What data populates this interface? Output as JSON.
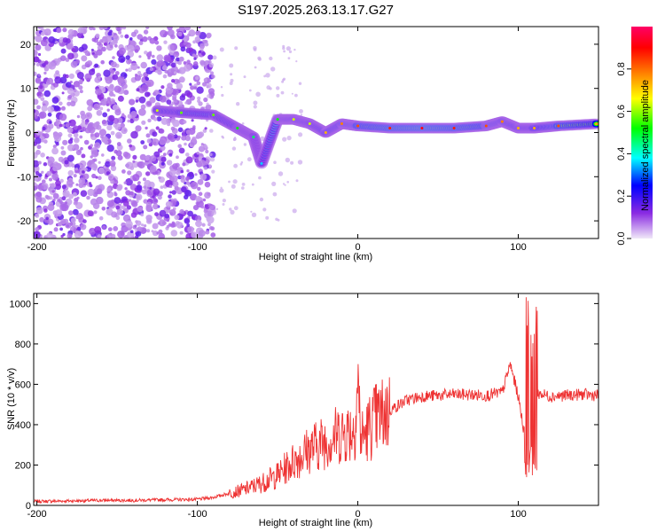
{
  "chart_data": [
    {
      "type": "heatmap",
      "title": "S197.2025.263.13.17.G27",
      "xlabel": "Height of straight line (km)",
      "ylabel": "Frequency (Hz)",
      "xlim": [
        -202,
        150
      ],
      "ylim": [
        -24,
        24
      ],
      "xticks": [
        -200,
        -100,
        0,
        100
      ],
      "yticks": [
        -20,
        -10,
        0,
        10,
        20
      ],
      "colorbar": {
        "label": "Normalized spectral amplitude",
        "range": [
          0,
          1
        ],
        "ticks": [
          "0.0",
          "0.2",
          "0.4",
          "0.6",
          "0.8"
        ],
        "stops": [
          "#e0d0f0",
          "#8a2be2",
          "#0000ff",
          "#00ffff",
          "#00ff00",
          "#ffff00",
          "#ff8000",
          "#ff0000",
          "#ff0060"
        ]
      },
      "ridge": [
        {
          "x": -125,
          "freq": 5,
          "amp": 0.6
        },
        {
          "x": -110,
          "freq": 4.5,
          "amp": 0.55
        },
        {
          "x": -90,
          "freq": 4,
          "amp": 0.55
        },
        {
          "x": -75,
          "freq": 1,
          "amp": 0.5
        },
        {
          "x": -65,
          "freq": -1,
          "amp": 0.45
        },
        {
          "x": -60,
          "freq": -7,
          "amp": 0.35
        },
        {
          "x": -50,
          "freq": 3,
          "amp": 0.5
        },
        {
          "x": -40,
          "freq": 3,
          "amp": 0.6
        },
        {
          "x": -30,
          "freq": 2,
          "amp": 0.6
        },
        {
          "x": -20,
          "freq": 0,
          "amp": 0.7
        },
        {
          "x": -10,
          "freq": 2,
          "amp": 0.75
        },
        {
          "x": 0,
          "freq": 1.5,
          "amp": 0.8
        },
        {
          "x": 20,
          "freq": 1,
          "amp": 0.85
        },
        {
          "x": 40,
          "freq": 1,
          "amp": 0.9
        },
        {
          "x": 60,
          "freq": 1,
          "amp": 0.85
        },
        {
          "x": 80,
          "freq": 1.5,
          "amp": 0.8
        },
        {
          "x": 90,
          "freq": 2.5,
          "amp": 0.75
        },
        {
          "x": 100,
          "freq": 1,
          "amp": 0.7
        },
        {
          "x": 110,
          "freq": 1,
          "amp": 0.7
        },
        {
          "x": 125,
          "freq": 1.5,
          "amp": 0.8
        },
        {
          "x": 150,
          "freq": 2,
          "amp": 0.7
        }
      ]
    },
    {
      "type": "line",
      "xlabel": "Height of straight line (km)",
      "ylabel": "SNR (10 * v/v)",
      "xlim": [
        -202,
        150
      ],
      "ylim": [
        0,
        1050
      ],
      "xticks": [
        -200,
        -100,
        0,
        100
      ],
      "yticks": [
        0,
        200,
        400,
        600,
        800,
        1000
      ],
      "color": "#ee3333",
      "series": [
        {
          "name": "SNR",
          "x": [
            -202,
            -180,
            -160,
            -140,
            -120,
            -100,
            -90,
            -80,
            -70,
            -60,
            -50,
            -40,
            -30,
            -20,
            -10,
            -2,
            0,
            2,
            10,
            20,
            30,
            40,
            50,
            60,
            70,
            80,
            90,
            95,
            100,
            105,
            108,
            110,
            120,
            130,
            140,
            150
          ],
          "y": [
            20,
            22,
            25,
            25,
            28,
            30,
            40,
            60,
            80,
            110,
            150,
            220,
            280,
            320,
            360,
            380,
            620,
            330,
            420,
            470,
            520,
            540,
            545,
            550,
            548,
            545,
            560,
            700,
            540,
            300,
            140,
            560,
            540,
            545,
            550,
            545
          ]
        }
      ]
    }
  ]
}
